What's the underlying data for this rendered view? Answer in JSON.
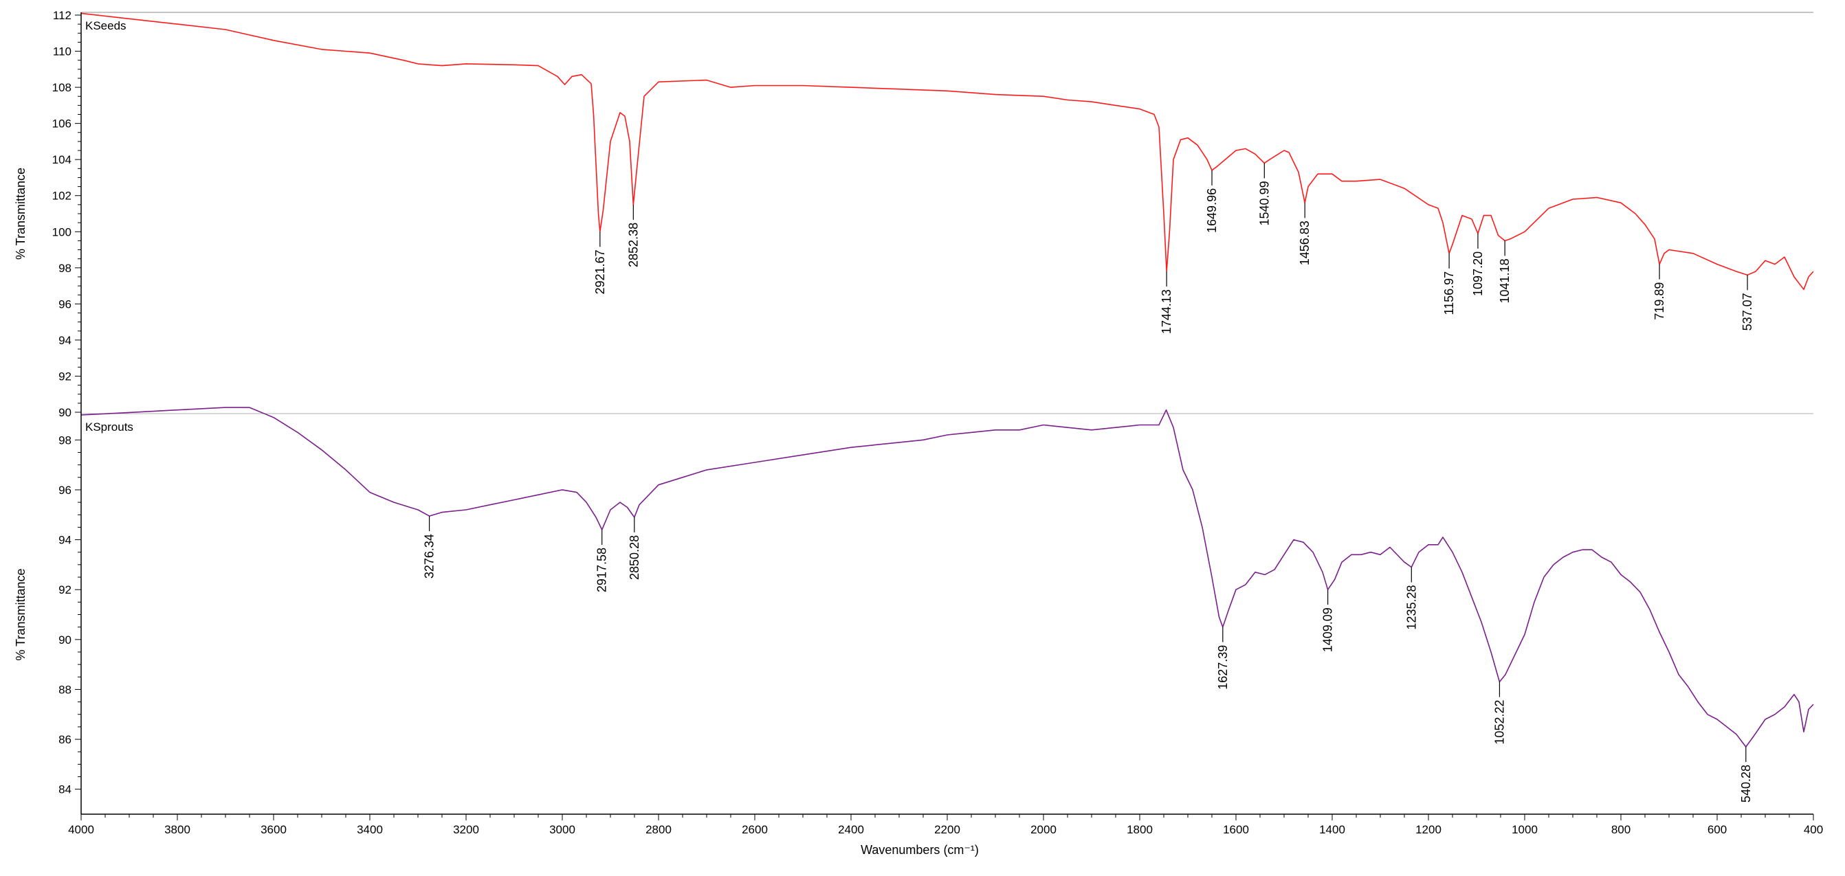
{
  "chart_data": {
    "type": "line",
    "xlabel": "Wavenumbers (cm⁻¹)",
    "xlim": [
      4000,
      400
    ],
    "x_reversed": true,
    "x_ticks": [
      4000,
      3800,
      3600,
      3400,
      3200,
      3000,
      2800,
      2600,
      2400,
      2200,
      2000,
      1800,
      1600,
      1400,
      1200,
      1000,
      800,
      600,
      400
    ],
    "panels": [
      {
        "series_name": "KSeeds",
        "color": "#ff1a1a",
        "ylabel": "% Transmittance",
        "ylim": [
          90,
          112
        ],
        "y_ticks": [
          90,
          92,
          94,
          96,
          98,
          100,
          102,
          104,
          106,
          108,
          110,
          112
        ],
        "points": [
          [
            4000,
            112.1
          ],
          [
            3900,
            111.8
          ],
          [
            3800,
            111.5
          ],
          [
            3700,
            111.2
          ],
          [
            3600,
            110.6
          ],
          [
            3500,
            110.1
          ],
          [
            3400,
            109.9
          ],
          [
            3330,
            109.5
          ],
          [
            3300,
            109.3
          ],
          [
            3250,
            109.2
          ],
          [
            3200,
            109.3
          ],
          [
            3100,
            109.25
          ],
          [
            3050,
            109.2
          ],
          [
            3010,
            108.6
          ],
          [
            2995,
            108.15
          ],
          [
            2980,
            108.6
          ],
          [
            2960,
            108.7
          ],
          [
            2940,
            108.2
          ],
          [
            2935,
            106.5
          ],
          [
            2925,
            101.0
          ],
          [
            2921.67,
            100.0
          ],
          [
            2915,
            101.2
          ],
          [
            2900,
            105.0
          ],
          [
            2880,
            106.6
          ],
          [
            2870,
            106.4
          ],
          [
            2860,
            105.0
          ],
          [
            2852.38,
            101.5
          ],
          [
            2845,
            103.5
          ],
          [
            2830,
            107.5
          ],
          [
            2800,
            108.3
          ],
          [
            2700,
            108.4
          ],
          [
            2650,
            108.0
          ],
          [
            2600,
            108.1
          ],
          [
            2500,
            108.1
          ],
          [
            2400,
            108.0
          ],
          [
            2300,
            107.9
          ],
          [
            2200,
            107.8
          ],
          [
            2100,
            107.6
          ],
          [
            2000,
            107.5
          ],
          [
            1950,
            107.3
          ],
          [
            1900,
            107.2
          ],
          [
            1850,
            107.0
          ],
          [
            1800,
            106.8
          ],
          [
            1770,
            106.5
          ],
          [
            1760,
            105.8
          ],
          [
            1750,
            101.0
          ],
          [
            1744.13,
            97.8
          ],
          [
            1738,
            100.0
          ],
          [
            1730,
            104.0
          ],
          [
            1715,
            105.1
          ],
          [
            1700,
            105.2
          ],
          [
            1680,
            104.8
          ],
          [
            1660,
            104.0
          ],
          [
            1649.96,
            103.4
          ],
          [
            1640,
            103.6
          ],
          [
            1600,
            104.5
          ],
          [
            1580,
            104.6
          ],
          [
            1560,
            104.3
          ],
          [
            1540.99,
            103.8
          ],
          [
            1530,
            104.0
          ],
          [
            1500,
            104.5
          ],
          [
            1490,
            104.4
          ],
          [
            1470,
            103.3
          ],
          [
            1456.83,
            101.6
          ],
          [
            1450,
            102.5
          ],
          [
            1430,
            103.2
          ],
          [
            1400,
            103.2
          ],
          [
            1380,
            102.8
          ],
          [
            1350,
            102.8
          ],
          [
            1300,
            102.9
          ],
          [
            1250,
            102.4
          ],
          [
            1200,
            101.5
          ],
          [
            1180,
            101.3
          ],
          [
            1170,
            100.5
          ],
          [
            1156.97,
            98.8
          ],
          [
            1150,
            99.3
          ],
          [
            1130,
            100.9
          ],
          [
            1110,
            100.7
          ],
          [
            1097.2,
            99.9
          ],
          [
            1085,
            100.9
          ],
          [
            1070,
            100.9
          ],
          [
            1055,
            99.8
          ],
          [
            1041.18,
            99.5
          ],
          [
            1030,
            99.6
          ],
          [
            1000,
            100.0
          ],
          [
            950,
            101.3
          ],
          [
            900,
            101.8
          ],
          [
            850,
            101.9
          ],
          [
            800,
            101.6
          ],
          [
            770,
            101.0
          ],
          [
            750,
            100.4
          ],
          [
            730,
            99.6
          ],
          [
            719.89,
            98.2
          ],
          [
            710,
            98.8
          ],
          [
            700,
            99.0
          ],
          [
            650,
            98.8
          ],
          [
            600,
            98.2
          ],
          [
            560,
            97.8
          ],
          [
            537.07,
            97.6
          ],
          [
            520,
            97.8
          ],
          [
            500,
            98.4
          ],
          [
            480,
            98.2
          ],
          [
            460,
            98.6
          ],
          [
            440,
            97.5
          ],
          [
            420,
            96.8
          ],
          [
            410,
            97.5
          ],
          [
            400,
            97.8
          ]
        ],
        "peaks": [
          {
            "x": 2921.67,
            "y": 100.0,
            "label": "2921.67"
          },
          {
            "x": 2852.38,
            "y": 101.5,
            "label": "2852.38"
          },
          {
            "x": 1744.13,
            "y": 97.8,
            "label": "1744.13"
          },
          {
            "x": 1649.96,
            "y": 103.4,
            "label": "1649.96"
          },
          {
            "x": 1540.99,
            "y": 103.8,
            "label": "1540.99"
          },
          {
            "x": 1456.83,
            "y": 101.6,
            "label": "1456.83"
          },
          {
            "x": 1156.97,
            "y": 98.8,
            "label": "1156.97"
          },
          {
            "x": 1097.2,
            "y": 99.9,
            "label": "1097.20"
          },
          {
            "x": 1041.18,
            "y": 99.5,
            "label": "1041.18"
          },
          {
            "x": 719.89,
            "y": 98.2,
            "label": "719.89"
          },
          {
            "x": 537.07,
            "y": 97.6,
            "label": "537.07"
          }
        ]
      },
      {
        "series_name": "KSprouts",
        "color": "#7a1f8c",
        "ylabel": "% Transmittance",
        "ylim": [
          83,
          99
        ],
        "y_ticks": [
          84,
          86,
          88,
          90,
          92,
          94,
          96,
          98
        ],
        "points": [
          [
            4000,
            99.0
          ],
          [
            3900,
            99.1
          ],
          [
            3800,
            99.2
          ],
          [
            3700,
            99.3
          ],
          [
            3650,
            99.3
          ],
          [
            3600,
            98.9
          ],
          [
            3550,
            98.3
          ],
          [
            3500,
            97.6
          ],
          [
            3450,
            96.8
          ],
          [
            3400,
            95.9
          ],
          [
            3350,
            95.5
          ],
          [
            3300,
            95.2
          ],
          [
            3276.34,
            94.95
          ],
          [
            3250,
            95.1
          ],
          [
            3200,
            95.2
          ],
          [
            3150,
            95.4
          ],
          [
            3100,
            95.6
          ],
          [
            3050,
            95.8
          ],
          [
            3000,
            96.0
          ],
          [
            2970,
            95.9
          ],
          [
            2950,
            95.5
          ],
          [
            2930,
            94.9
          ],
          [
            2917.58,
            94.4
          ],
          [
            2900,
            95.2
          ],
          [
            2880,
            95.5
          ],
          [
            2865,
            95.3
          ],
          [
            2850.28,
            94.9
          ],
          [
            2840,
            95.4
          ],
          [
            2800,
            96.2
          ],
          [
            2750,
            96.5
          ],
          [
            2700,
            96.8
          ],
          [
            2600,
            97.1
          ],
          [
            2500,
            97.4
          ],
          [
            2400,
            97.7
          ],
          [
            2300,
            97.9
          ],
          [
            2250,
            98.0
          ],
          [
            2200,
            98.2
          ],
          [
            2150,
            98.3
          ],
          [
            2100,
            98.4
          ],
          [
            2050,
            98.4
          ],
          [
            2000,
            98.6
          ],
          [
            1950,
            98.5
          ],
          [
            1900,
            98.4
          ],
          [
            1850,
            98.5
          ],
          [
            1800,
            98.6
          ],
          [
            1760,
            98.6
          ],
          [
            1745,
            99.2
          ],
          [
            1730,
            98.5
          ],
          [
            1710,
            96.8
          ],
          [
            1690,
            96.0
          ],
          [
            1670,
            94.5
          ],
          [
            1650,
            92.5
          ],
          [
            1635,
            90.9
          ],
          [
            1627.39,
            90.5
          ],
          [
            1615,
            91.2
          ],
          [
            1600,
            92.0
          ],
          [
            1580,
            92.2
          ],
          [
            1560,
            92.7
          ],
          [
            1540,
            92.6
          ],
          [
            1520,
            92.8
          ],
          [
            1500,
            93.4
          ],
          [
            1480,
            94.0
          ],
          [
            1460,
            93.9
          ],
          [
            1440,
            93.5
          ],
          [
            1420,
            92.7
          ],
          [
            1409.09,
            92.0
          ],
          [
            1395,
            92.4
          ],
          [
            1380,
            93.1
          ],
          [
            1360,
            93.4
          ],
          [
            1340,
            93.4
          ],
          [
            1320,
            93.5
          ],
          [
            1300,
            93.4
          ],
          [
            1280,
            93.7
          ],
          [
            1260,
            93.3
          ],
          [
            1250,
            93.1
          ],
          [
            1235.28,
            92.9
          ],
          [
            1220,
            93.5
          ],
          [
            1200,
            93.8
          ],
          [
            1180,
            93.8
          ],
          [
            1170,
            94.1
          ],
          [
            1150,
            93.5
          ],
          [
            1130,
            92.7
          ],
          [
            1110,
            91.7
          ],
          [
            1090,
            90.7
          ],
          [
            1070,
            89.5
          ],
          [
            1052.22,
            88.3
          ],
          [
            1040,
            88.6
          ],
          [
            1020,
            89.4
          ],
          [
            1000,
            90.2
          ],
          [
            980,
            91.5
          ],
          [
            960,
            92.5
          ],
          [
            940,
            93.0
          ],
          [
            920,
            93.3
          ],
          [
            900,
            93.5
          ],
          [
            880,
            93.6
          ],
          [
            860,
            93.6
          ],
          [
            840,
            93.3
          ],
          [
            820,
            93.1
          ],
          [
            800,
            92.6
          ],
          [
            780,
            92.3
          ],
          [
            760,
            91.9
          ],
          [
            740,
            91.2
          ],
          [
            720,
            90.3
          ],
          [
            700,
            89.5
          ],
          [
            680,
            88.6
          ],
          [
            660,
            88.1
          ],
          [
            640,
            87.5
          ],
          [
            620,
            87.0
          ],
          [
            600,
            86.8
          ],
          [
            580,
            86.5
          ],
          [
            560,
            86.2
          ],
          [
            540.28,
            85.7
          ],
          [
            525,
            86.1
          ],
          [
            500,
            86.8
          ],
          [
            480,
            87.0
          ],
          [
            460,
            87.3
          ],
          [
            440,
            87.8
          ],
          [
            430,
            87.5
          ],
          [
            420,
            86.3
          ],
          [
            410,
            87.2
          ],
          [
            400,
            87.4
          ]
        ],
        "peaks": [
          {
            "x": 3276.34,
            "y": 94.95,
            "label": "3276.34"
          },
          {
            "x": 2917.58,
            "y": 94.4,
            "label": "2917.58"
          },
          {
            "x": 2850.28,
            "y": 94.9,
            "label": "2850.28"
          },
          {
            "x": 1627.39,
            "y": 90.5,
            "label": "1627.39"
          },
          {
            "x": 1409.09,
            "y": 92.0,
            "label": "1409.09"
          },
          {
            "x": 1235.28,
            "y": 92.9,
            "label": "1235.28"
          },
          {
            "x": 1052.22,
            "y": 88.3,
            "label": "1052.22"
          },
          {
            "x": 540.28,
            "y": 85.7,
            "label": "540.28"
          }
        ]
      }
    ]
  }
}
